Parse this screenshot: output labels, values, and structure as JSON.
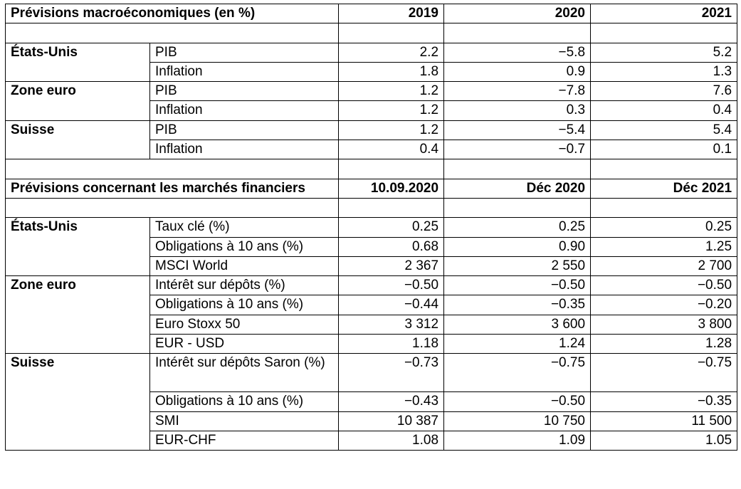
{
  "macro": {
    "header": {
      "title": "Prévisions macroéconomiques (en %)",
      "cols": [
        "2019",
        "2020",
        "2021"
      ]
    },
    "groups": [
      {
        "region": "États-Unis",
        "rows": [
          {
            "label": "PIB",
            "values": [
              "2.2",
              "−5.8",
              "5.2"
            ]
          },
          {
            "label": "Inflation",
            "values": [
              "1.8",
              "0.9",
              "1.3"
            ]
          }
        ]
      },
      {
        "region": "Zone euro",
        "rows": [
          {
            "label": "PIB",
            "values": [
              "1.2",
              "−7.8",
              "7.6"
            ]
          },
          {
            "label": "Inflation",
            "values": [
              "1.2",
              "0.3",
              "0.4"
            ]
          }
        ]
      },
      {
        "region": "Suisse",
        "rows": [
          {
            "label": "PIB",
            "values": [
              "1.2",
              "−5.4",
              "5.4"
            ]
          },
          {
            "label": "Inflation",
            "values": [
              "0.4",
              "−0.7",
              "0.1"
            ]
          }
        ]
      }
    ]
  },
  "markets": {
    "header": {
      "title": "Prévisions concernant les marchés financiers",
      "cols": [
        "10.09.2020",
        "Déc 2020",
        "Déc 2021"
      ]
    },
    "groups": [
      {
        "region": "États-Unis",
        "rows": [
          {
            "label": "Taux clé (%)",
            "values": [
              "0.25",
              "0.25",
              "0.25"
            ]
          },
          {
            "label": "Obligations à 10 ans (%)",
            "values": [
              "0.68",
              "0.90",
              "1.25"
            ]
          },
          {
            "label": "MSCI World",
            "values": [
              "2 367",
              "2 550",
              "2 700"
            ]
          }
        ]
      },
      {
        "region": "Zone euro",
        "rows": [
          {
            "label": "Intérêt sur dépôts (%)",
            "values": [
              "−0.50",
              "−0.50",
              "−0.50"
            ]
          },
          {
            "label": "Obligations à 10 ans (%)",
            "values": [
              "−0.44",
              "−0.35",
              "−0.20"
            ]
          },
          {
            "label": "Euro Stoxx 50",
            "values": [
              "3 312",
              "3 600",
              "3 800"
            ]
          },
          {
            "label": "EUR - USD",
            "values": [
              "1.18",
              "1.24",
              "1.28"
            ]
          }
        ]
      },
      {
        "region": "Suisse",
        "rows": [
          {
            "label": "Intérêt sur dépôts Saron (%)",
            "values": [
              "−0.73",
              "−0.75",
              "−0.75"
            ]
          },
          {
            "label": "Obligations à 10 ans (%)",
            "values": [
              "−0.43",
              "−0.50",
              "−0.35"
            ]
          },
          {
            "label": "SMI",
            "values": [
              "10 387",
              "10 750",
              "11 500"
            ]
          },
          {
            "label": "EUR-CHF",
            "values": [
              "1.08",
              "1.09",
              "1.05"
            ]
          }
        ]
      }
    ]
  }
}
